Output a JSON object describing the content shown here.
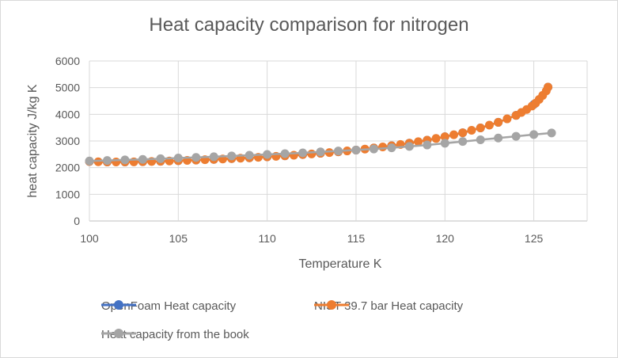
{
  "chart_data": {
    "type": "line",
    "title": "Heat capacity comparison for nitrogen",
    "xlabel": "Temperature K",
    "ylabel": "heat capacity J/kg K",
    "xlim": [
      100,
      128
    ],
    "ylim": [
      0,
      6000
    ],
    "xticks": [
      100,
      105,
      110,
      115,
      120,
      125
    ],
    "yticks": [
      0,
      1000,
      2000,
      3000,
      4000,
      5000,
      6000
    ],
    "grid": true,
    "legend_position": "bottom",
    "series": [
      {
        "name": "OpenFoam Heat capacity",
        "color": "#4472c4",
        "x": [
          100,
          101,
          102,
          103,
          104,
          105,
          106,
          107,
          108,
          109,
          110,
          111,
          112,
          113,
          114,
          115,
          116,
          117,
          118,
          119,
          120,
          121,
          122,
          123,
          124,
          125,
          125.8
        ],
        "y": [
          2230,
          2215,
          2215,
          2225,
          2240,
          2260,
          2285,
          2310,
          2340,
          2370,
          2405,
          2445,
          2490,
          2540,
          2595,
          2660,
          2735,
          2820,
          2920,
          3030,
          3160,
          3310,
          3490,
          3700,
          3960,
          4370,
          5020
        ]
      },
      {
        "name": "NIST 39.7 bar Heat capacity",
        "color": "#ed7d31",
        "x": [
          100,
          100.5,
          101,
          101.5,
          102,
          102.5,
          103,
          103.5,
          104,
          104.5,
          105,
          105.5,
          106,
          106.5,
          107,
          107.5,
          108,
          108.5,
          109,
          109.5,
          110,
          110.5,
          111,
          111.5,
          112,
          112.5,
          113,
          113.5,
          114,
          114.5,
          115,
          115.5,
          116,
          116.5,
          117,
          117.5,
          118,
          118.5,
          119,
          119.5,
          120,
          120.5,
          121,
          121.5,
          122,
          122.5,
          123,
          123.5,
          124,
          124.3,
          124.6,
          124.9,
          125.1,
          125.3,
          125.5,
          125.7,
          125.8
        ],
        "y": [
          2230,
          2220,
          2215,
          2213,
          2215,
          2218,
          2225,
          2231,
          2240,
          2249,
          2260,
          2272,
          2285,
          2297,
          2310,
          2325,
          2340,
          2355,
          2370,
          2387,
          2405,
          2425,
          2445,
          2467,
          2490,
          2515,
          2540,
          2567,
          2595,
          2627,
          2660,
          2697,
          2735,
          2777,
          2820,
          2870,
          2920,
          2975,
          3030,
          3095,
          3160,
          3235,
          3310,
          3400,
          3490,
          3595,
          3700,
          3830,
          3960,
          4070,
          4180,
          4310,
          4420,
          4560,
          4710,
          4880,
          5020
        ]
      },
      {
        "name": "Heat capacity from the book",
        "color": "#a5a5a5",
        "x": [
          100,
          101,
          102,
          103,
          104,
          105,
          106,
          107,
          108,
          109,
          110,
          111,
          112,
          113,
          114,
          115,
          116,
          117,
          118,
          119,
          120,
          121,
          122,
          123,
          124,
          125,
          126
        ],
        "y": [
          2250,
          2270,
          2290,
          2310,
          2335,
          2360,
          2385,
          2410,
          2440,
          2465,
          2495,
          2525,
          2555,
          2590,
          2625,
          2660,
          2700,
          2745,
          2795,
          2850,
          2915,
          2980,
          3045,
          3110,
          3175,
          3240,
          3300
        ]
      }
    ]
  }
}
